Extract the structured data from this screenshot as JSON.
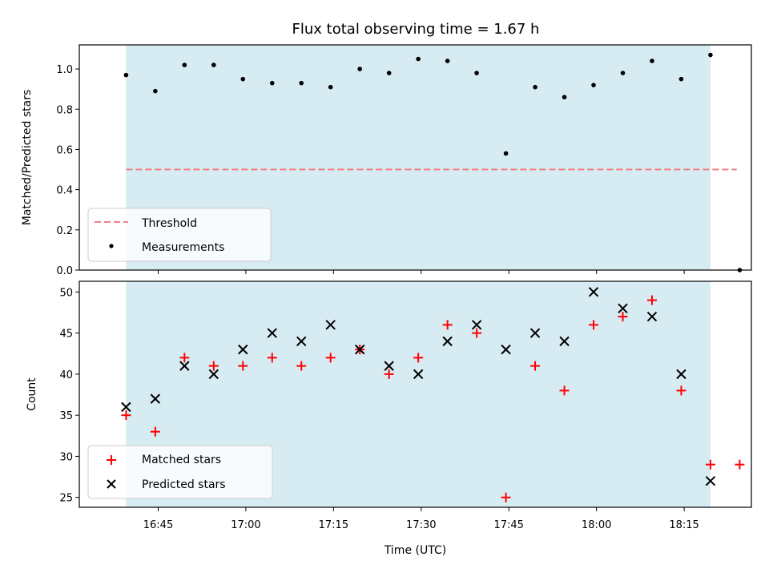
{
  "colors": {
    "shade": "#add8e6",
    "threshold": "#f08080",
    "matched": "#ff0000",
    "predicted": "#000000",
    "measurement": "#000000"
  },
  "chart_data": [
    {
      "type": "scatter",
      "title": "Flux total observing time = 1.67 h",
      "xlabel": "",
      "ylabel": "Matched/Predicted stars",
      "x_range_minutes": [
        991.5,
        1106.5
      ],
      "shaded_interval_minutes": [
        999.5,
        1099.5
      ],
      "ylim": [
        0,
        1.12
      ],
      "yticks": [
        0.0,
        0.2,
        0.4,
        0.6,
        0.8,
        1.0
      ],
      "ytick_labels": [
        "0.0",
        "0.2",
        "0.4",
        "0.6",
        "0.8",
        "1.0"
      ],
      "threshold": {
        "value": 0.5,
        "x_start": 999.5,
        "x_end": 1104.0,
        "label": "Threshold"
      },
      "series": [
        {
          "name": "Measurements",
          "x": [
            999.5,
            1004.5,
            1009.5,
            1014.5,
            1019.5,
            1024.5,
            1029.5,
            1034.5,
            1039.5,
            1044.5,
            1049.5,
            1054.5,
            1059.5,
            1064.5,
            1069.5,
            1074.5,
            1079.5,
            1084.5,
            1089.5,
            1094.5,
            1099.5,
            1104.5
          ],
          "y": [
            0.97,
            0.89,
            1.02,
            1.02,
            0.95,
            0.93,
            0.93,
            0.91,
            1.0,
            0.98,
            1.05,
            1.04,
            0.98,
            0.58,
            0.91,
            0.86,
            0.92,
            0.98,
            1.04,
            0.95,
            1.07,
            0.0
          ]
        }
      ],
      "legend": [
        "Threshold",
        "Measurements"
      ]
    },
    {
      "type": "scatter",
      "title": "",
      "xlabel": "Time (UTC)",
      "ylabel": "Count",
      "x_range_minutes": [
        991.5,
        1106.5
      ],
      "shaded_interval_minutes": [
        999.5,
        1099.5
      ],
      "ylim": [
        23.8,
        51.3
      ],
      "yticks": [
        25,
        30,
        35,
        40,
        45,
        50
      ],
      "ytick_labels": [
        "25",
        "30",
        "35",
        "40",
        "45",
        "50"
      ],
      "xticks_minutes": [
        1005,
        1020,
        1035,
        1050,
        1065,
        1080,
        1095
      ],
      "xtick_labels": [
        "16:45",
        "17:00",
        "17:15",
        "17:30",
        "17:45",
        "18:00",
        "18:15"
      ],
      "series": [
        {
          "name": "Matched stars",
          "x": [
            999.5,
            1004.5,
            1009.5,
            1014.5,
            1019.5,
            1024.5,
            1029.5,
            1034.5,
            1039.5,
            1044.5,
            1049.5,
            1054.5,
            1059.5,
            1064.5,
            1069.5,
            1074.5,
            1079.5,
            1084.5,
            1089.5,
            1094.5,
            1099.5,
            1104.5
          ],
          "y": [
            35,
            33,
            42,
            41,
            41,
            42,
            41,
            42,
            43,
            40,
            42,
            46,
            45,
            25,
            41,
            38,
            46,
            47,
            49,
            38,
            29,
            29
          ]
        },
        {
          "name": "Predicted stars",
          "x": [
            999.5,
            1004.5,
            1009.5,
            1014.5,
            1019.5,
            1024.5,
            1029.5,
            1034.5,
            1039.5,
            1044.5,
            1049.5,
            1054.5,
            1059.5,
            1064.5,
            1069.5,
            1074.5,
            1079.5,
            1084.5,
            1089.5,
            1094.5,
            1099.5
          ],
          "y": [
            36,
            37,
            41,
            40,
            43,
            45,
            44,
            46,
            43,
            41,
            40,
            44,
            46,
            43,
            45,
            44,
            50,
            48,
            47,
            40,
            27
          ]
        }
      ],
      "legend": [
        "Matched stars",
        "Predicted stars"
      ]
    }
  ]
}
